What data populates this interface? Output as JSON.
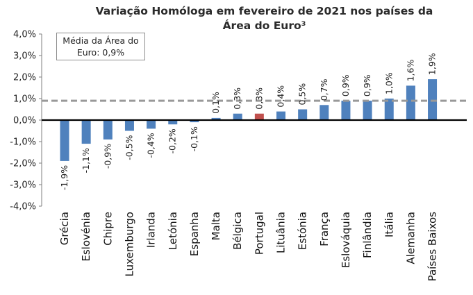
{
  "chart_data": {
    "type": "bar",
    "title_line1": "Variação Homóloga em fevereiro de 2021 nos países da",
    "title_line2": "Área do Euro³",
    "categories": [
      "Grécia",
      "Eslovénia",
      "Chipre",
      "Luxemburgo",
      "Irlanda",
      "Letónia",
      "Espanha",
      "Malta",
      "Bélgica",
      "Portugal",
      "Lituânia",
      "Estónia",
      "França",
      "Eslováquia",
      "Finlândia",
      "Itália",
      "Alemanha",
      "Países Baixos"
    ],
    "values": [
      -1.9,
      -1.1,
      -0.9,
      -0.5,
      -0.4,
      -0.2,
      -0.1,
      0.1,
      0.3,
      0.3,
      0.4,
      0.5,
      0.7,
      0.9,
      0.9,
      1.0,
      1.6,
      1.9
    ],
    "value_labels": [
      "-1,9%",
      "-1,1%",
      "-0,9%",
      "-0,5%",
      "-0,4%",
      "-0,2%",
      "-0,1%",
      "0,1%",
      "0,3%",
      "0,3%",
      "0,4%",
      "0,5%",
      "0,7%",
      "0,9%",
      "0,9%",
      "1,0%",
      "1,6%",
      "1,9%"
    ],
    "ylim": [
      -4.0,
      4.0
    ],
    "yticks": [
      4.0,
      3.0,
      2.0,
      1.0,
      0.0,
      -1.0,
      -2.0,
      -3.0,
      -4.0
    ],
    "ytick_labels": [
      "4,0%",
      "3,0%",
      "2,0%",
      "1,0%",
      "0,0%",
      "-1,0%",
      "-2,0%",
      "-3,0%",
      "-4,0%"
    ],
    "reference_line": {
      "value": 0.9,
      "style": "dashed",
      "color": "#999999"
    },
    "legend": {
      "line1": "Média da Área do",
      "line2": "Euro: 0,9%",
      "placement": "top-left"
    },
    "colors": {
      "bar": "#4f81bd",
      "highlight": "#c0504d",
      "axis": "#000000",
      "frame": "#7f7f7f"
    },
    "highlight_category": "Portugal",
    "grid": false
  }
}
